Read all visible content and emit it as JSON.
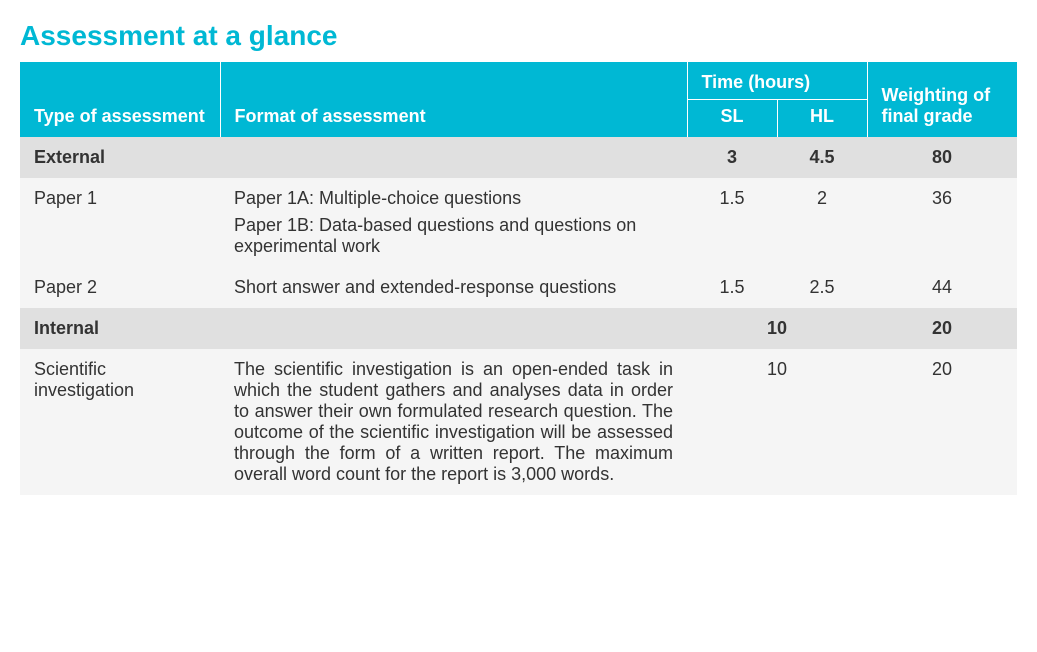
{
  "title": "Assessment at a glance",
  "colors": {
    "accent": "#00b8d4",
    "header_text": "#ffffff",
    "section_bg": "#e0e0e0",
    "row_bg": "#f5f5f5",
    "body_text": "#333333"
  },
  "typography": {
    "title_fontsize": 28,
    "header_fontsize": 18,
    "body_fontsize": 18
  },
  "columns": {
    "type": "Type of assessment",
    "format": "Format of assessment",
    "time_group": "Time (hours)",
    "sl": "SL",
    "hl": "HL",
    "weight": "Weighting of final grade"
  },
  "rows": [
    {
      "kind": "section",
      "type": "External",
      "format": "",
      "sl": "3",
      "hl": "4.5",
      "weight": "80",
      "merged_time": false
    },
    {
      "kind": "normal",
      "type": "Paper 1",
      "format_lines": [
        "Paper 1A: Multiple-choice questions",
        "Paper 1B: Data-based questions and questions on experimental work"
      ],
      "sl": "1.5",
      "hl": "2",
      "weight": "36",
      "merged_time": false
    },
    {
      "kind": "normal",
      "type": "Paper 2",
      "format_lines": [
        "Short answer and extended-response questions"
      ],
      "sl": "1.5",
      "hl": "2.5",
      "weight": "44",
      "merged_time": false
    },
    {
      "kind": "section",
      "type": "Internal",
      "format": "",
      "time_merged": "10",
      "weight": "20",
      "merged_time": true
    },
    {
      "kind": "normal",
      "type": "Scientific investigation",
      "format_lines": [
        "The scientific investigation is an open-ended task in which the student gathers and analyses data in order to answer their own formulated research question. The outcome of the scientific investigation will be assessed through the form of a written report. The maximum overall word count for the report is 3,000 words."
      ],
      "justify": true,
      "time_merged": "10",
      "weight": "20",
      "merged_time": true
    }
  ]
}
